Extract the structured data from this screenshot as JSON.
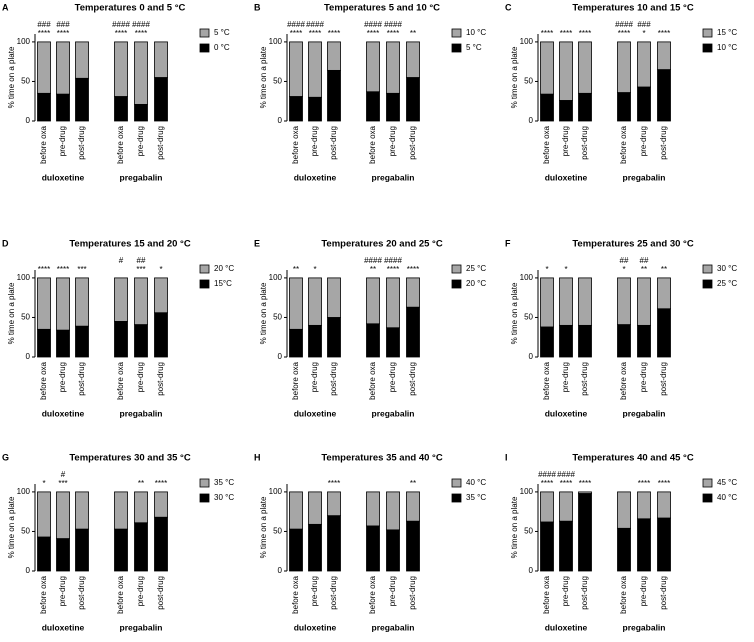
{
  "chart_data": [
    {
      "type": "stacked-bar",
      "letter": "A",
      "title": "Temperatures 0 and 5 °C",
      "ylabel": "% time on a plate",
      "categories": [
        "before oxa",
        "pre-drug",
        "post-drug",
        "before oxa",
        "pre-drug",
        "post-drug"
      ],
      "groups": [
        "duloxetine",
        "pregabalin"
      ],
      "series": [
        {
          "name": "0 °C",
          "color": "#000000",
          "values": [
            35,
            34,
            54,
            31,
            21,
            55
          ]
        },
        {
          "name": "5 °C",
          "color": "#a6a6a6",
          "values": [
            65,
            66,
            46,
            69,
            79,
            45
          ]
        }
      ],
      "stars": [
        "****",
        "****",
        null,
        "****",
        "****",
        null
      ],
      "hashes": [
        "###",
        "###",
        null,
        "####",
        "####",
        null
      ],
      "ylim": [
        0,
        110
      ],
      "yticks": [
        0,
        50,
        100
      ]
    },
    {
      "type": "stacked-bar",
      "letter": "B",
      "title": "Temperatures 5 and 10 °C",
      "ylabel": "% time on a plate",
      "categories": [
        "before oxa",
        "pre-drug",
        "post-drug",
        "before oxa",
        "pre-drug",
        "post-drug"
      ],
      "groups": [
        "duloxetine",
        "pregabalin"
      ],
      "series": [
        {
          "name": "5 °C",
          "color": "#000000",
          "values": [
            31,
            30,
            64,
            37,
            35,
            55
          ]
        },
        {
          "name": "10 °C",
          "color": "#a6a6a6",
          "values": [
            69,
            70,
            36,
            63,
            65,
            45
          ]
        }
      ],
      "stars": [
        "****",
        "****",
        "****",
        "****",
        "****",
        "**"
      ],
      "hashes": [
        "####",
        "####",
        null,
        "####",
        "####",
        null
      ],
      "ylim": [
        0,
        110
      ],
      "yticks": [
        0,
        50,
        100
      ]
    },
    {
      "type": "stacked-bar",
      "letter": "C",
      "title": "Temperatures 10 and 15 °C",
      "ylabel": "% time on a plate",
      "categories": [
        "before oxa",
        "pre-drug",
        "post-drug",
        "before oxa",
        "pre-drug",
        "post-drug"
      ],
      "groups": [
        "duloxetine",
        "pregabalin"
      ],
      "series": [
        {
          "name": "10 °C",
          "color": "#000000",
          "values": [
            34,
            26,
            35,
            36,
            43,
            65
          ]
        },
        {
          "name": "15 °C",
          "color": "#a6a6a6",
          "values": [
            66,
            74,
            65,
            64,
            57,
            35
          ]
        }
      ],
      "stars": [
        "****",
        "****",
        "****",
        "****",
        "*",
        "****"
      ],
      "hashes": [
        null,
        null,
        null,
        "####",
        "###",
        null
      ],
      "ylim": [
        0,
        110
      ],
      "yticks": [
        0,
        50,
        100
      ]
    },
    {
      "type": "stacked-bar",
      "letter": "D",
      "title": "Temperatures 15 and 20 °C",
      "ylabel": "% time on a plate",
      "categories": [
        "before oxa",
        "pre-drug",
        "post-drug",
        "before oxa",
        "pre-drug",
        "post-drug"
      ],
      "groups": [
        "duloxetine",
        "pregabalin"
      ],
      "series": [
        {
          "name": "15°C",
          "color": "#000000",
          "values": [
            35,
            34,
            39,
            45,
            41,
            56
          ]
        },
        {
          "name": "20 °C",
          "color": "#a6a6a6",
          "values": [
            65,
            66,
            61,
            55,
            59,
            44
          ]
        }
      ],
      "stars": [
        "****",
        "****",
        "***",
        null,
        "***",
        "*"
      ],
      "hashes": [
        null,
        null,
        null,
        "#",
        "##",
        null
      ],
      "ylim": [
        0,
        110
      ],
      "yticks": [
        0,
        50,
        100
      ]
    },
    {
      "type": "stacked-bar",
      "letter": "E",
      "title": "Temperatures 20 and 25 °C",
      "ylabel": "% time on a plate",
      "categories": [
        "before oxa",
        "pre-drug",
        "post-drug",
        "before oxa",
        "pre-drug",
        "post-drug"
      ],
      "groups": [
        "duloxetine",
        "pregabalin"
      ],
      "series": [
        {
          "name": "20 °C",
          "color": "#000000",
          "values": [
            35,
            40,
            50,
            42,
            37,
            63
          ]
        },
        {
          "name": "25 °C",
          "color": "#a6a6a6",
          "values": [
            65,
            60,
            50,
            58,
            63,
            37
          ]
        }
      ],
      "stars": [
        "**",
        "*",
        null,
        "**",
        "****",
        "****"
      ],
      "hashes": [
        null,
        null,
        null,
        "####",
        "####",
        null
      ],
      "ylim": [
        0,
        110
      ],
      "yticks": [
        0,
        50,
        100
      ]
    },
    {
      "type": "stacked-bar",
      "letter": "F",
      "title": "Temperatures 25 and 30 °C",
      "ylabel": "% time on a plate",
      "categories": [
        "before oxa",
        "pre-drug",
        "post-drug",
        "before oxa",
        "pre-drug",
        "post-drug"
      ],
      "groups": [
        "duloxetine",
        "pregabalin"
      ],
      "series": [
        {
          "name": "25 °C",
          "color": "#000000",
          "values": [
            38,
            40,
            40,
            41,
            40,
            61
          ]
        },
        {
          "name": "30 °C",
          "color": "#a6a6a6",
          "values": [
            62,
            60,
            60,
            59,
            60,
            39
          ]
        }
      ],
      "stars": [
        "*",
        "*",
        null,
        "*",
        "**",
        "**"
      ],
      "hashes": [
        null,
        null,
        null,
        "##",
        "##",
        null
      ],
      "ylim": [
        0,
        110
      ],
      "yticks": [
        0,
        50,
        100
      ]
    },
    {
      "type": "stacked-bar",
      "letter": "G",
      "title": "Temperatures 30 and 35 °C",
      "ylabel": "% time on a plate",
      "categories": [
        "before oxa",
        "pre-drug",
        "post-drug",
        "before oxa",
        "pre-drug",
        "post-drug"
      ],
      "groups": [
        "duloxetine",
        "pregabalin"
      ],
      "series": [
        {
          "name": "30 °C",
          "color": "#000000",
          "values": [
            43,
            41,
            53,
            53,
            61,
            68
          ]
        },
        {
          "name": "35 °C",
          "color": "#a6a6a6",
          "values": [
            57,
            59,
            47,
            47,
            39,
            32
          ]
        }
      ],
      "stars": [
        "*",
        "***",
        null,
        null,
        "**",
        "****"
      ],
      "hashes": [
        null,
        "#",
        null,
        null,
        null,
        null
      ],
      "ylim": [
        0,
        110
      ],
      "yticks": [
        0,
        50,
        100
      ]
    },
    {
      "type": "stacked-bar",
      "letter": "H",
      "title": "Temperatures 35 and 40 °C",
      "ylabel": "% time on a plate",
      "categories": [
        "before oxa",
        "pre-drug",
        "post-drug",
        "before oxa",
        "pre-drug",
        "post-drug"
      ],
      "groups": [
        "duloxetine",
        "pregabalin"
      ],
      "series": [
        {
          "name": "35 °C",
          "color": "#000000",
          "values": [
            53,
            59,
            70,
            57,
            52,
            63
          ]
        },
        {
          "name": "40 °C",
          "color": "#a6a6a6",
          "values": [
            47,
            41,
            30,
            43,
            48,
            37
          ]
        }
      ],
      "stars": [
        null,
        null,
        "****",
        null,
        null,
        "**"
      ],
      "hashes": [
        null,
        null,
        null,
        null,
        null,
        null
      ],
      "ylim": [
        0,
        110
      ],
      "yticks": [
        0,
        50,
        100
      ]
    },
    {
      "type": "stacked-bar",
      "letter": "I",
      "title": "Temperatures 40 and 45 °C",
      "ylabel": "% time on a plate",
      "categories": [
        "before oxa",
        "pre-drug",
        "post-drug",
        "before oxa",
        "pre-drug",
        "post-drug"
      ],
      "groups": [
        "duloxetine",
        "pregabalin"
      ],
      "series": [
        {
          "name": "40 °C",
          "color": "#000000",
          "values": [
            62,
            63,
            98,
            54,
            66,
            67
          ]
        },
        {
          "name": "45 °C",
          "color": "#a6a6a6",
          "values": [
            38,
            37,
            2,
            46,
            34,
            33
          ]
        }
      ],
      "stars": [
        "****",
        "****",
        "****",
        null,
        "****",
        "****"
      ],
      "hashes": [
        "####",
        "####",
        null,
        null,
        null,
        null
      ],
      "ylim": [
        0,
        110
      ],
      "yticks": [
        0,
        50,
        100
      ]
    }
  ]
}
